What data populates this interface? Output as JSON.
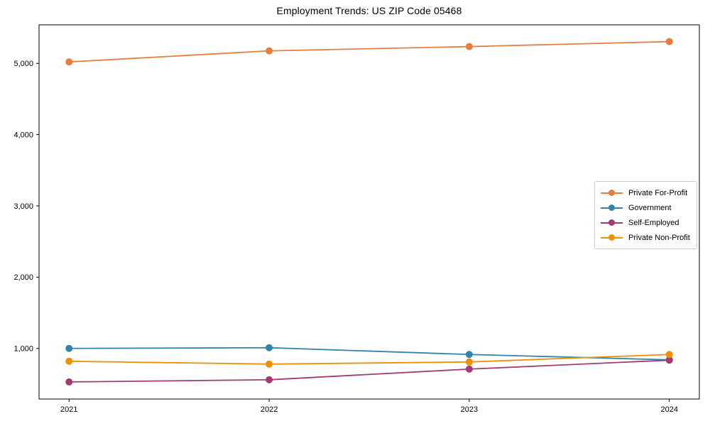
{
  "figure": {
    "title": "Employment Trends: US ZIP Code 05468",
    "background_color": "#ffffff",
    "frame_color": "#000000"
  },
  "chart_data": {
    "type": "line",
    "title": "Employment Trends: US ZIP Code 05468",
    "categories": [
      2021,
      2022,
      2023,
      2024
    ],
    "series": [
      {
        "name": "Private For-Profit",
        "color": "#E87D3C",
        "values": [
          5020,
          5175,
          5235,
          5305
        ]
      },
      {
        "name": "Government",
        "color": "#2E86AB",
        "values": [
          1000,
          1010,
          915,
          840
        ]
      },
      {
        "name": "Self-Employed",
        "color": "#A23B72",
        "values": [
          530,
          560,
          710,
          835
        ]
      },
      {
        "name": "Private Non-Profit",
        "color": "#F18F01",
        "values": [
          820,
          780,
          810,
          915
        ]
      }
    ],
    "xlabel": "",
    "ylabel": "",
    "xlim": [
      2020.85,
      2024.15
    ],
    "ylim": [
      290,
      5540
    ],
    "xticks": [
      2021,
      2022,
      2023,
      2024
    ],
    "xtick_labels": [
      "2021",
      "2022",
      "2023",
      "2024"
    ],
    "yticks": [
      1000,
      2000,
      3000,
      4000,
      5000
    ],
    "ytick_labels": [
      "1,000",
      "2,000",
      "3,000",
      "4,000",
      "5,000"
    ],
    "grid": false,
    "marker": "o",
    "legend_position": "center right"
  }
}
